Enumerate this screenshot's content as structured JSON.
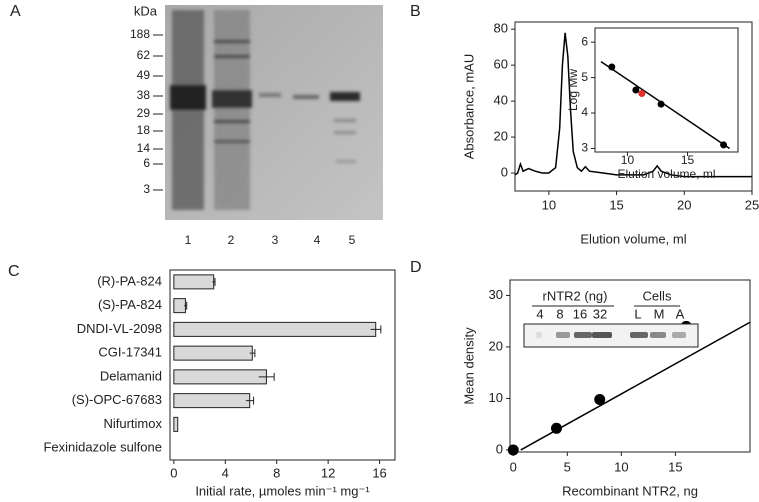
{
  "gel": {
    "panel": "A",
    "unit": "kDa",
    "markers": [
      188,
      62,
      49,
      38,
      29,
      18,
      14,
      6,
      3
    ],
    "lanes": [
      1,
      2,
      3,
      4,
      5
    ]
  },
  "chart_data": [
    {
      "type": "line",
      "panel": "B",
      "xlabel": "Elution volume, ml",
      "ylabel": "Absorbance, mAU",
      "xlim": [
        7.5,
        25
      ],
      "xticks": [
        10,
        15,
        20,
        25
      ],
      "ylim": [
        -10,
        84
      ],
      "yticks": [
        0,
        20,
        40,
        60,
        80
      ],
      "x": [
        7.5,
        7.7,
        7.9,
        8.1,
        8.5,
        9,
        9.5,
        10,
        10.5,
        10.8,
        11,
        11.2,
        11.4,
        11.6,
        11.8,
        12.1,
        12.4,
        12.7,
        13,
        14,
        15,
        16,
        17,
        17.7,
        18,
        18.3,
        19,
        20,
        22,
        25
      ],
      "series": [
        {
          "color": "#000000",
          "values": [
            -1,
            0,
            5,
            1,
            2.5,
            1,
            0,
            0,
            3,
            25,
            60,
            78,
            65,
            35,
            12,
            3,
            1,
            3.5,
            1,
            0,
            -1,
            -1,
            -1,
            1,
            4,
            1,
            -1,
            -2,
            -2,
            -2
          ]
        }
      ]
    },
    {
      "type": "scatter",
      "xlabel": "Elution volume, ml",
      "ylabel": "Log Mw",
      "xlim": [
        7.3,
        19.2
      ],
      "xticks": [
        10,
        15
      ],
      "ylim": [
        2.9,
        6.4
      ],
      "yticks": [
        3,
        4,
        5,
        6
      ],
      "series": [
        {
          "color": "#000000",
          "x": [
            8.7,
            10.7,
            12.8,
            18
          ],
          "values": [
            5.3,
            4.65,
            4.25,
            3.1
          ]
        },
        {
          "color": "#e0302a",
          "x": [
            11.2
          ],
          "values": [
            4.55
          ]
        }
      ],
      "fit": {
        "x": [
          7.8,
          18.5
        ],
        "values": [
          5.45,
          3.0
        ]
      }
    },
    {
      "type": "barh",
      "panel": "C",
      "xlabel": "Initial rate, µmoles min⁻¹ mg⁻¹",
      "categories": [
        "(R)-PA-824",
        "(S)-PA-824",
        "DNDI-VL-2098",
        "CGI-17341",
        "Delamanid",
        "(S)-OPC-67683",
        "Nifurtimox",
        "Fexinidazole sulfone"
      ],
      "values": [
        3.1,
        0.9,
        15.7,
        6.1,
        7.2,
        5.9,
        0.3,
        0
      ],
      "errors": [
        0.1,
        0.1,
        0.4,
        0.2,
        0.6,
        0.3,
        0,
        0
      ],
      "color": "#d9d9d9",
      "xlim": [
        -0.3,
        17.2
      ],
      "xticks": [
        0,
        4,
        8,
        12,
        16
      ]
    },
    {
      "type": "scatter",
      "panel": "D",
      "xlabel": "Recombinant NTR2, ng",
      "ylabel": "Mean density",
      "xlim": [
        -0.3,
        21.9
      ],
      "xticks": [
        0,
        5,
        10,
        15
      ],
      "ylim": [
        -0.4,
        33
      ],
      "yticks": [
        0,
        10,
        20,
        30
      ],
      "series": [
        {
          "color": "#000000",
          "x": [
            0,
            4,
            8,
            16
          ],
          "values": [
            0,
            4.2,
            9.8,
            24
          ]
        }
      ],
      "fit": {
        "x": [
          0.7,
          21.9
        ],
        "values": [
          0,
          24.8
        ]
      },
      "blot": {
        "title": "rNTR2 (ng)",
        "amounts": [
          4,
          8,
          16,
          32
        ],
        "cells_title": "Cells",
        "cells": [
          "L",
          "M",
          "A"
        ]
      }
    }
  ]
}
